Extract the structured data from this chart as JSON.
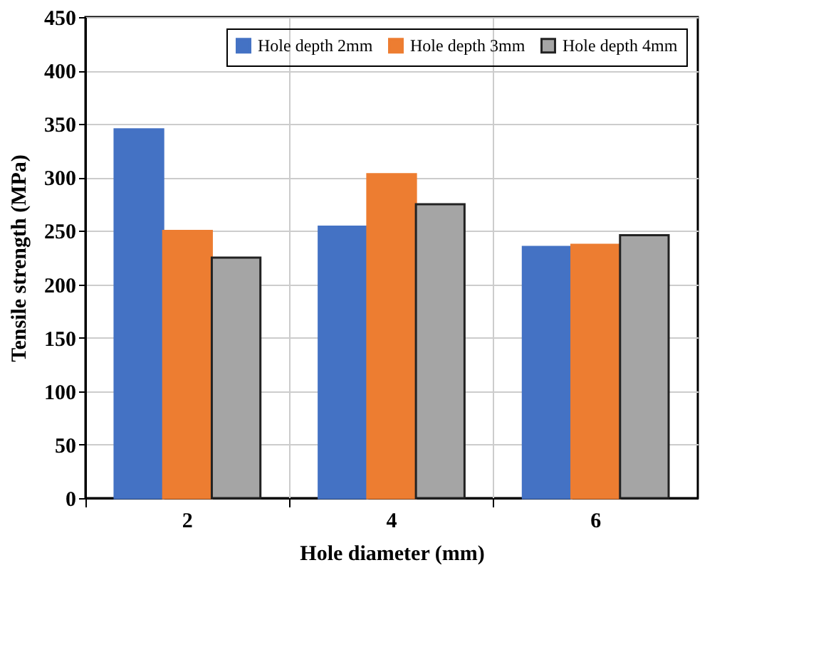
{
  "chart_data": {
    "type": "bar",
    "xlabel": "Hole diameter (mm)",
    "ylabel": "Tensile strength (MPa)",
    "categories": [
      "2",
      "4",
      "6"
    ],
    "series": [
      {
        "name": "Hole depth 2mm",
        "color": "#4472c4",
        "values": [
          345,
          254,
          235
        ]
      },
      {
        "name": "Hole depth 3mm",
        "color": "#ed7d31",
        "values": [
          250,
          303,
          237
        ]
      },
      {
        "name": "Hole depth 4mm",
        "color": "#a5a5a5",
        "values": [
          225,
          275,
          246
        ]
      }
    ],
    "ylim": [
      0,
      450
    ],
    "yticks": [
      0,
      50,
      100,
      150,
      200,
      250,
      300,
      350,
      400,
      450
    ],
    "grid": true,
    "legend": "top right"
  }
}
